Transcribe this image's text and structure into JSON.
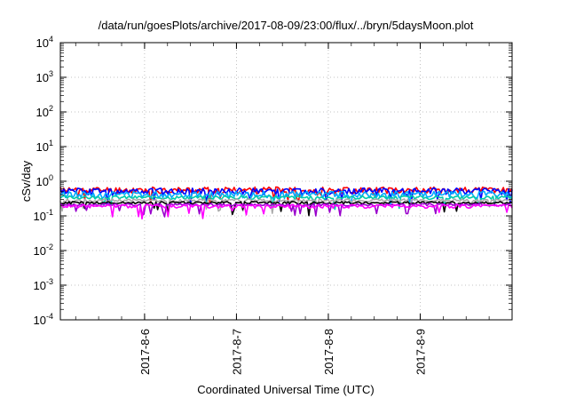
{
  "chart_data": {
    "type": "line",
    "title": "/data/run/goesPlots/archive/2017-08-09/23:00/flux/../bryn/5daysMoon.plot",
    "xlabel": "Coordinated Universal Time (UTC)",
    "ylabel": "cSv/day",
    "yscale": "log",
    "ylim": [
      0.0001,
      10000
    ],
    "y_ticks": [
      {
        "base": "10",
        "exp": "-4"
      },
      {
        "base": "10",
        "exp": "-3"
      },
      {
        "base": "10",
        "exp": "-2"
      },
      {
        "base": "10",
        "exp": "-1"
      },
      {
        "base": "10",
        "exp": "0"
      },
      {
        "base": "10",
        "exp": "1"
      },
      {
        "base": "10",
        "exp": "2"
      },
      {
        "base": "10",
        "exp": "3"
      },
      {
        "base": "10",
        "exp": "4"
      }
    ],
    "xlim": [
      "2017-08-05T02:00",
      "2017-08-10T00:00"
    ],
    "x_ticks": [
      {
        "label": "2017-8-6",
        "date": "2017-08-06T00:00"
      },
      {
        "label": "2017-8-7",
        "date": "2017-08-07T00:00"
      },
      {
        "label": "2017-8-8",
        "date": "2017-08-08T00:00"
      },
      {
        "label": "2017-8-9",
        "date": "2017-08-09T00:00"
      }
    ],
    "grid": true,
    "series": [
      {
        "color": "#ff0000",
        "level": 0.56,
        "jitter": 0.22,
        "seed": 11
      },
      {
        "color": "#0000ff",
        "level": 0.52,
        "jitter": 0.22,
        "seed": 12
      },
      {
        "color": "#00aaff",
        "level": 0.42,
        "jitter": 0.22,
        "seed": 13
      },
      {
        "color": "#00ccaa",
        "level": 0.34,
        "jitter": 0.12,
        "seed": 14
      },
      {
        "color": "#aaaaaa",
        "level": 0.28,
        "jitter": 0.1,
        "seed": 15
      },
      {
        "color": "#000000",
        "level": 0.24,
        "jitter": 0.08,
        "seed": 16
      },
      {
        "color": "#9900cc",
        "level": 0.21,
        "jitter": 0.08,
        "seed": 17
      },
      {
        "color": "#ff00ff",
        "level": 0.19,
        "jitter": 0.12,
        "seed": 18
      }
    ]
  }
}
